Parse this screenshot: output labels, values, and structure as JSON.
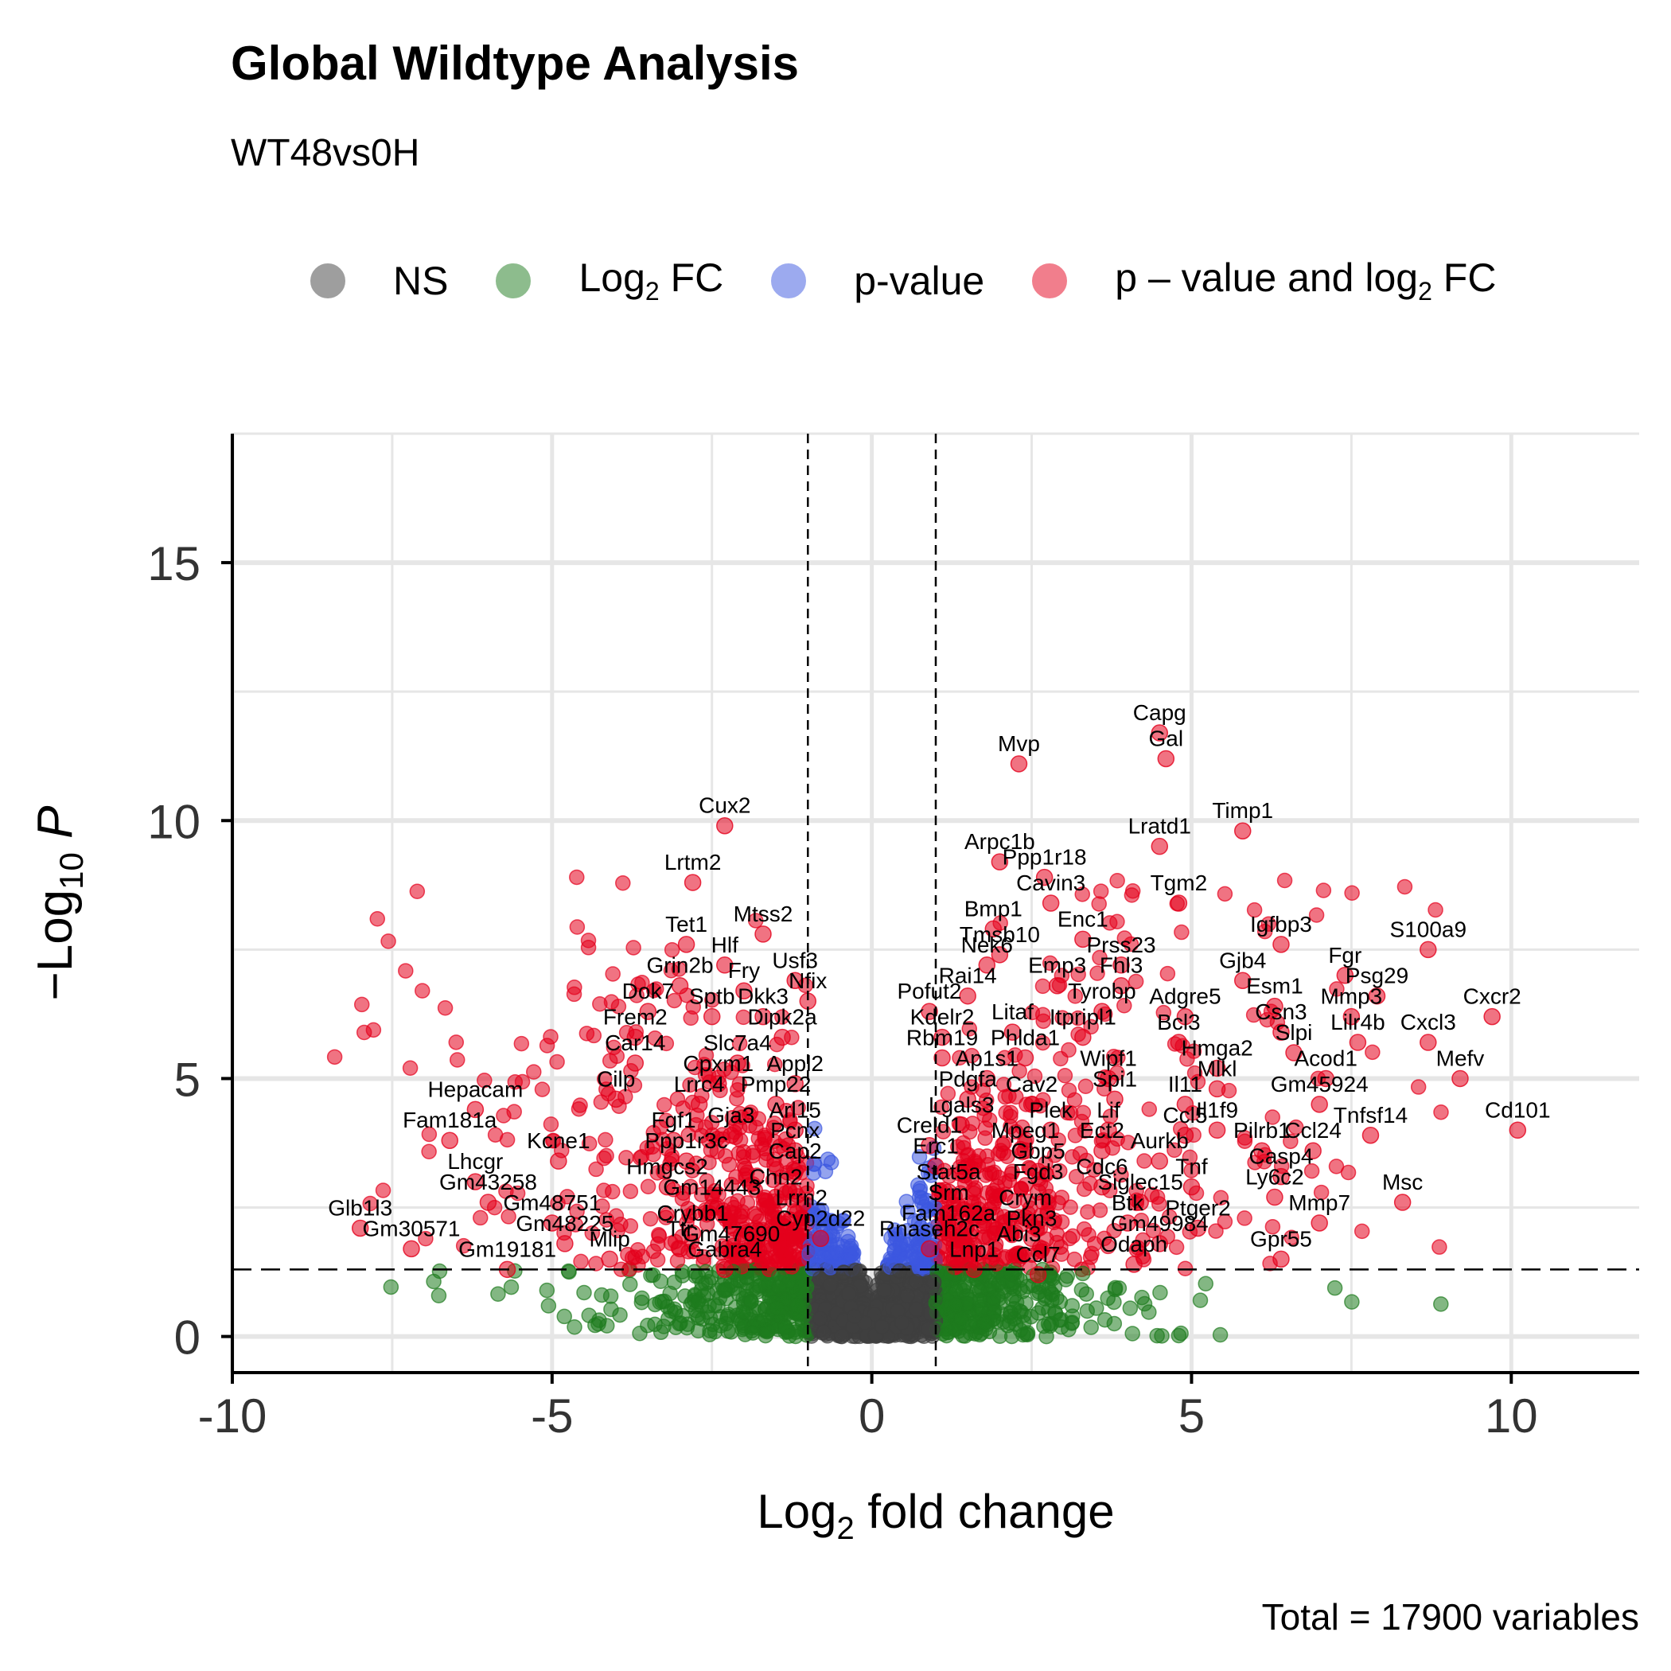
{
  "chart_data": {
    "type": "scatter",
    "title": "Global Wildtype Analysis",
    "subtitle": "WT48vs0H",
    "xlabel": "Log2 fold change",
    "ylabel": "−Log10 P",
    "caption": "Total = 17900 variables",
    "xlim": [
      -10,
      12
    ],
    "ylim": [
      0,
      17.5
    ],
    "x_ticks": [
      "-10",
      "-5",
      "0",
      "5",
      "10"
    ],
    "y_ticks": [
      "0",
      "5",
      "10",
      "15"
    ],
    "grid": true,
    "legend_position": "top",
    "fc_cutoff": 1,
    "p_cutoff_neglog10": 1.3,
    "colors": {
      "NS": "#3f3f3f",
      "Log2FC": "#1e7b1e",
      "pvalue": "#3c57e0",
      "both": "#e4001c"
    },
    "legend": [
      {
        "key": "NS",
        "label": "NS",
        "color": "#3f3f3f"
      },
      {
        "key": "Log2FC",
        "label": "Log",
        "sub": "2",
        "post": " FC",
        "color": "#1e7b1e"
      },
      {
        "key": "pvalue",
        "label": "p-value",
        "color": "#3c57e0"
      },
      {
        "key": "both",
        "label": "p – value and log",
        "sub": "2",
        "post": " FC",
        "color": "#e4001c"
      }
    ],
    "labeled_genes": [
      {
        "name": "Capg",
        "x": 4.5,
        "y": 11.7
      },
      {
        "name": "Gal",
        "x": 4.6,
        "y": 11.2
      },
      {
        "name": "Mvp",
        "x": 2.3,
        "y": 11.1
      },
      {
        "name": "Cux2",
        "x": -2.3,
        "y": 9.9
      },
      {
        "name": "Timp1",
        "x": 5.8,
        "y": 9.8
      },
      {
        "name": "Arpc1b",
        "x": 2.0,
        "y": 9.2
      },
      {
        "name": "Lratd1",
        "x": 4.5,
        "y": 9.5
      },
      {
        "name": "Ppp1r18",
        "x": 2.7,
        "y": 8.9
      },
      {
        "name": "Lrtm2",
        "x": -2.8,
        "y": 8.8
      },
      {
        "name": "Cavin3",
        "x": 2.8,
        "y": 8.4
      },
      {
        "name": "Tgm2",
        "x": 4.8,
        "y": 8.4
      },
      {
        "name": "Bmp1",
        "x": 1.9,
        "y": 7.9
      },
      {
        "name": "Tet1",
        "x": -2.9,
        "y": 7.6
      },
      {
        "name": "Mtss2",
        "x": -1.7,
        "y": 7.8
      },
      {
        "name": "Enc1",
        "x": 3.3,
        "y": 7.7
      },
      {
        "name": "Igfbp3",
        "x": 6.4,
        "y": 7.6
      },
      {
        "name": "Tmsb10",
        "x": 2.0,
        "y": 7.4
      },
      {
        "name": "S100a9",
        "x": 8.7,
        "y": 7.5
      },
      {
        "name": "Hlf",
        "x": -2.3,
        "y": 7.2
      },
      {
        "name": "Nek6",
        "x": 1.8,
        "y": 7.2
      },
      {
        "name": "Prss23",
        "x": 3.9,
        "y": 7.2
      },
      {
        "name": "Fgr",
        "x": 7.4,
        "y": 7.0
      },
      {
        "name": "Usf3",
        "x": -1.2,
        "y": 6.9
      },
      {
        "name": "Grin2b",
        "x": -3.0,
        "y": 6.8
      },
      {
        "name": "Emp3",
        "x": 2.9,
        "y": 6.8
      },
      {
        "name": "Fhl3",
        "x": 3.9,
        "y": 6.8
      },
      {
        "name": "Gjb4",
        "x": 5.8,
        "y": 6.9
      },
      {
        "name": "Fry",
        "x": -2.0,
        "y": 6.7
      },
      {
        "name": "Rai14",
        "x": 1.5,
        "y": 6.6
      },
      {
        "name": "Psg29",
        "x": 7.9,
        "y": 6.6
      },
      {
        "name": "Nfix",
        "x": -1.0,
        "y": 6.5
      },
      {
        "name": "Esm1",
        "x": 6.3,
        "y": 6.4
      },
      {
        "name": "Dok7",
        "x": -3.5,
        "y": 6.3
      },
      {
        "name": "Sptb",
        "x": -2.5,
        "y": 6.2
      },
      {
        "name": "Dkk3",
        "x": -1.7,
        "y": 6.2
      },
      {
        "name": "Pofut2",
        "x": 0.9,
        "y": 6.3
      },
      {
        "name": "Tyrobp",
        "x": 3.6,
        "y": 6.3
      },
      {
        "name": "Adgre5",
        "x": 4.9,
        "y": 6.2
      },
      {
        "name": "Mmp3",
        "x": 7.5,
        "y": 6.2
      },
      {
        "name": "Cxcr2",
        "x": 9.7,
        "y": 6.2
      },
      {
        "name": "Litaf",
        "x": 2.2,
        "y": 5.9
      },
      {
        "name": "Itpripl1",
        "x": 3.3,
        "y": 5.8
      },
      {
        "name": "Csn3",
        "x": 6.4,
        "y": 5.9
      },
      {
        "name": "Frem2",
        "x": -3.7,
        "y": 5.8
      },
      {
        "name": "Dipk2a",
        "x": -1.4,
        "y": 5.8
      },
      {
        "name": "Kdelr2",
        "x": 1.1,
        "y": 5.8
      },
      {
        "name": "Bcl3",
        "x": 4.8,
        "y": 5.7
      },
      {
        "name": "Lilr4b",
        "x": 7.6,
        "y": 5.7
      },
      {
        "name": "Cxcl3",
        "x": 8.7,
        "y": 5.7
      },
      {
        "name": "Slpi",
        "x": 6.6,
        "y": 5.5
      },
      {
        "name": "Car14",
        "x": -3.7,
        "y": 5.3
      },
      {
        "name": "Slc7a4",
        "x": -2.1,
        "y": 5.3
      },
      {
        "name": "Rbm19",
        "x": 1.1,
        "y": 5.4
      },
      {
        "name": "Phlda1",
        "x": 2.4,
        "y": 5.4
      },
      {
        "name": "Hmga2",
        "x": 5.4,
        "y": 5.2
      },
      {
        "name": "Acod1",
        "x": 7.1,
        "y": 5.0
      },
      {
        "name": "Mefv",
        "x": 9.2,
        "y": 5.0
      },
      {
        "name": "Ap1s1",
        "x": 1.8,
        "y": 5.0
      },
      {
        "name": "Wipf1",
        "x": 3.7,
        "y": 5.0
      },
      {
        "name": "Mlkl",
        "x": 5.4,
        "y": 4.8
      },
      {
        "name": "Appl2",
        "x": -1.2,
        "y": 4.9
      },
      {
        "name": "Cpxm1",
        "x": -2.4,
        "y": 4.9
      },
      {
        "name": "Cilp",
        "x": -4.0,
        "y": 4.6
      },
      {
        "name": "Pdgfa",
        "x": 1.5,
        "y": 4.6
      },
      {
        "name": "Cav2",
        "x": 2.5,
        "y": 4.5
      },
      {
        "name": "Spi1",
        "x": 3.8,
        "y": 4.6
      },
      {
        "name": "Il11",
        "x": 4.9,
        "y": 4.5
      },
      {
        "name": "Gm45924",
        "x": 7.0,
        "y": 4.5
      },
      {
        "name": "Pmp22",
        "x": -1.5,
        "y": 4.5
      },
      {
        "name": "Lrrc4",
        "x": -2.7,
        "y": 4.5
      },
      {
        "name": "Hepacam",
        "x": -6.2,
        "y": 4.4
      },
      {
        "name": "Cd101",
        "x": 10.1,
        "y": 4.0
      },
      {
        "name": "Lgals3",
        "x": 1.4,
        "y": 4.1
      },
      {
        "name": "Plek",
        "x": 2.8,
        "y": 4.0
      },
      {
        "name": "Lif",
        "x": 3.7,
        "y": 4.0
      },
      {
        "name": "Ccl5",
        "x": 4.9,
        "y": 3.9
      },
      {
        "name": "Il1f9",
        "x": 5.4,
        "y": 4.0
      },
      {
        "name": "Tnfsf14",
        "x": 7.8,
        "y": 3.9
      },
      {
        "name": "Arl15",
        "x": -1.2,
        "y": 4.0
      },
      {
        "name": "Gja3",
        "x": -2.2,
        "y": 3.9
      },
      {
        "name": "Fam181a",
        "x": -6.6,
        "y": 3.8
      },
      {
        "name": "Fgf1",
        "x": -3.1,
        "y": 3.8
      },
      {
        "name": "Creld1",
        "x": 0.9,
        "y": 3.7
      },
      {
        "name": "Mpeg1",
        "x": 2.4,
        "y": 3.6
      },
      {
        "name": "Ect2",
        "x": 3.6,
        "y": 3.6
      },
      {
        "name": "Pilrb1",
        "x": 6.1,
        "y": 3.6
      },
      {
        "name": "Ccl24",
        "x": 6.9,
        "y": 3.6
      },
      {
        "name": "Pcnx",
        "x": -1.2,
        "y": 3.6
      },
      {
        "name": "Kcne1",
        "x": -4.9,
        "y": 3.4
      },
      {
        "name": "Ppp1r3c",
        "x": -2.9,
        "y": 3.4
      },
      {
        "name": "Aurkb",
        "x": 4.5,
        "y": 3.4
      },
      {
        "name": "Erc1",
        "x": 1.0,
        "y": 3.3
      },
      {
        "name": "Gbp5",
        "x": 2.6,
        "y": 3.2
      },
      {
        "name": "Cap2",
        "x": -1.2,
        "y": 3.2
      },
      {
        "name": "Lhcgr",
        "x": -6.2,
        "y": 3.0
      },
      {
        "name": "Casp4",
        "x": 6.4,
        "y": 3.1
      },
      {
        "name": "Cdc6",
        "x": 3.6,
        "y": 2.9
      },
      {
        "name": "Tnf",
        "x": 5.0,
        "y": 2.9
      },
      {
        "name": "Hmgcs2",
        "x": -3.2,
        "y": 2.9
      },
      {
        "name": "Stat5a",
        "x": 1.2,
        "y": 2.8
      },
      {
        "name": "Fgd3",
        "x": 2.6,
        "y": 2.8
      },
      {
        "name": "Ly6c2",
        "x": 6.3,
        "y": 2.7
      },
      {
        "name": "Msc",
        "x": 8.3,
        "y": 2.6
      },
      {
        "name": "Chn2",
        "x": -1.5,
        "y": 2.7
      },
      {
        "name": "Gm43258",
        "x": -6.0,
        "y": 2.6
      },
      {
        "name": "Siglec15",
        "x": 4.2,
        "y": 2.6
      },
      {
        "name": "Gm14443",
        "x": -2.5,
        "y": 2.5
      },
      {
        "name": "Srm",
        "x": 1.2,
        "y": 2.4
      },
      {
        "name": "Crym",
        "x": 2.4,
        "y": 2.3
      },
      {
        "name": "Lrrn2",
        "x": -1.1,
        "y": 2.3
      },
      {
        "name": "Mmp7",
        "x": 7.0,
        "y": 2.2
      },
      {
        "name": "Gm48751",
        "x": -5.0,
        "y": 2.2
      },
      {
        "name": "Glb1l3",
        "x": -8.0,
        "y": 2.1
      },
      {
        "name": "Btk",
        "x": 4.0,
        "y": 2.2
      },
      {
        "name": "Ptger2",
        "x": 5.1,
        "y": 2.1
      },
      {
        "name": "Crybb1",
        "x": -2.8,
        "y": 2.0
      },
      {
        "name": "Fam162a",
        "x": 1.2,
        "y": 2.0
      },
      {
        "name": "Pkn3",
        "x": 2.5,
        "y": 1.9
      },
      {
        "name": "Cyp2d22",
        "x": -0.8,
        "y": 1.9
      },
      {
        "name": "Gm48225",
        "x": -4.8,
        "y": 1.8
      },
      {
        "name": "Gm49984",
        "x": 4.5,
        "y": 1.8
      },
      {
        "name": "Ttr",
        "x": -3.0,
        "y": 1.7
      },
      {
        "name": "Gm30571",
        "x": -7.2,
        "y": 1.7
      },
      {
        "name": "Rnaseh2c",
        "x": 0.9,
        "y": 1.7
      },
      {
        "name": "Abi3",
        "x": 2.3,
        "y": 1.6
      },
      {
        "name": "Gm47690",
        "x": -2.2,
        "y": 1.6
      },
      {
        "name": "Mlip",
        "x": -4.1,
        "y": 1.5
      },
      {
        "name": "Gpr55",
        "x": 6.4,
        "y": 1.5
      },
      {
        "name": "Odaph",
        "x": 4.1,
        "y": 1.4
      },
      {
        "name": "Lnp1",
        "x": 1.6,
        "y": 1.3
      },
      {
        "name": "Gabra4",
        "x": -2.3,
        "y": 1.3
      },
      {
        "name": "Gm19181",
        "x": -5.7,
        "y": 1.3
      },
      {
        "name": "Ccl7",
        "x": 2.6,
        "y": 1.2
      }
    ]
  }
}
